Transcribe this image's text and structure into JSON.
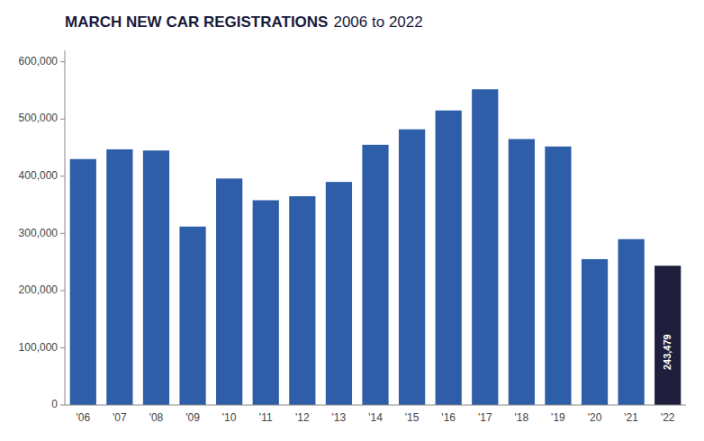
{
  "chart_data": {
    "type": "bar",
    "title": "MARCH NEW CAR REGISTRATIONS",
    "subtitle": "2006 to 2022",
    "categories": [
      "'06",
      "'07",
      "'08",
      "'09",
      "'10",
      "'11",
      "'12",
      "'13",
      "'14",
      "'15",
      "'16",
      "'17",
      "'18",
      "'19",
      "'20",
      "'21",
      "'22"
    ],
    "values": [
      430000,
      447000,
      445000,
      312000,
      396000,
      358000,
      365000,
      390000,
      455000,
      482000,
      515000,
      552000,
      465000,
      452000,
      255000,
      290000,
      243479
    ],
    "value_labels": [
      null,
      null,
      null,
      null,
      null,
      null,
      null,
      null,
      null,
      null,
      null,
      null,
      null,
      null,
      null,
      null,
      "243,479"
    ],
    "data_labels": true,
    "colors": [
      "#2e5ea8",
      "#2e5ea8",
      "#2e5ea8",
      "#2e5ea8",
      "#2e5ea8",
      "#2e5ea8",
      "#2e5ea8",
      "#2e5ea8",
      "#2e5ea8",
      "#2e5ea8",
      "#2e5ea8",
      "#2e5ea8",
      "#2e5ea8",
      "#2e5ea8",
      "#2e5ea8",
      "#2e5ea8",
      "#1f1f3d"
    ],
    "ylim": [
      0,
      620000
    ],
    "yticks": [
      0,
      {
        "value": 100000,
        "label": "100,000"
      },
      {
        "value": 200000,
        "label": "200,000"
      },
      {
        "value": 300000,
        "label": "300,000"
      },
      {
        "value": 400000,
        "label": "400,000"
      },
      {
        "value": 500000,
        "label": "500,000"
      },
      {
        "value": 600000,
        "label": "600,000"
      }
    ],
    "grid": false
  }
}
